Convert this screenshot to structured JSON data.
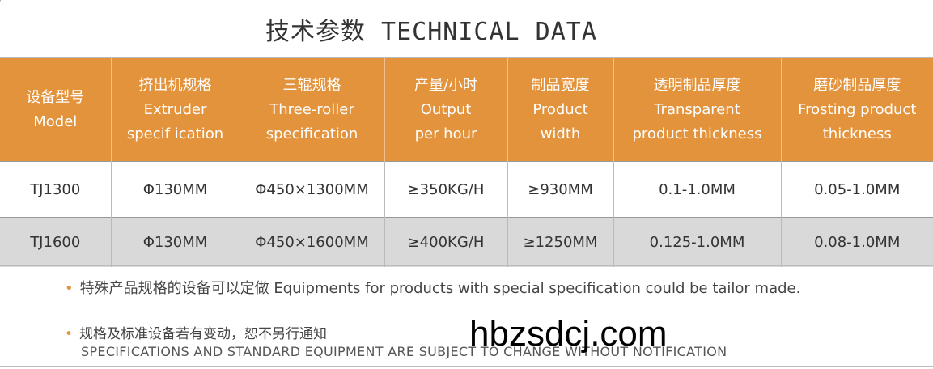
{
  "title": "技术参数 TECHNICAL DATA",
  "headers": [
    {
      "cn": "设备型号",
      "en1": "Model",
      "en2": ""
    },
    {
      "cn": "挤出机规格",
      "en1": "Extruder",
      "en2": "specif ication"
    },
    {
      "cn": "三辊规格",
      "en1": "Three-roller",
      "en2": "specification"
    },
    {
      "cn": "产量/小时",
      "en1": "Output",
      "en2": "per hour"
    },
    {
      "cn": "制品宽度",
      "en1": "Product",
      "en2": "width"
    },
    {
      "cn": "透明制品厚度",
      "en1": "Transparent",
      "en2": "product thickness"
    },
    {
      "cn": "磨砂制品厚度",
      "en1": "Frosting product",
      "en2": "thickness"
    }
  ],
  "rows": [
    [
      "TJ1300",
      "Φ130MM",
      "Φ450×1300MM",
      "≥350KG/H",
      "≥930MM",
      "0.1-1.0MM",
      "0.05-1.0MM"
    ],
    [
      "TJ1600",
      "Φ130MM",
      "Φ450×1600MM",
      "≥400KG/H",
      "≥1250MM",
      "0.125-1.0MM",
      "0.08-1.0MM"
    ]
  ],
  "notes": {
    "n1": "特殊产品规格的设备可以定做 Equipments for products with special specification could be tailor made.",
    "n2_cn": "规格及标准设备若有变动，恕不另行通知",
    "n2_en": "SPECIFICATIONS AND STANDARD EQUIPMENT ARE SUBJECT TO CHANGE WITHOUT NOTIFICATION",
    "bullet": "•"
  },
  "watermark": "hbzsdcj.com",
  "colors": {
    "header": "#e3933c",
    "row_alt": "#d9d9d9"
  }
}
